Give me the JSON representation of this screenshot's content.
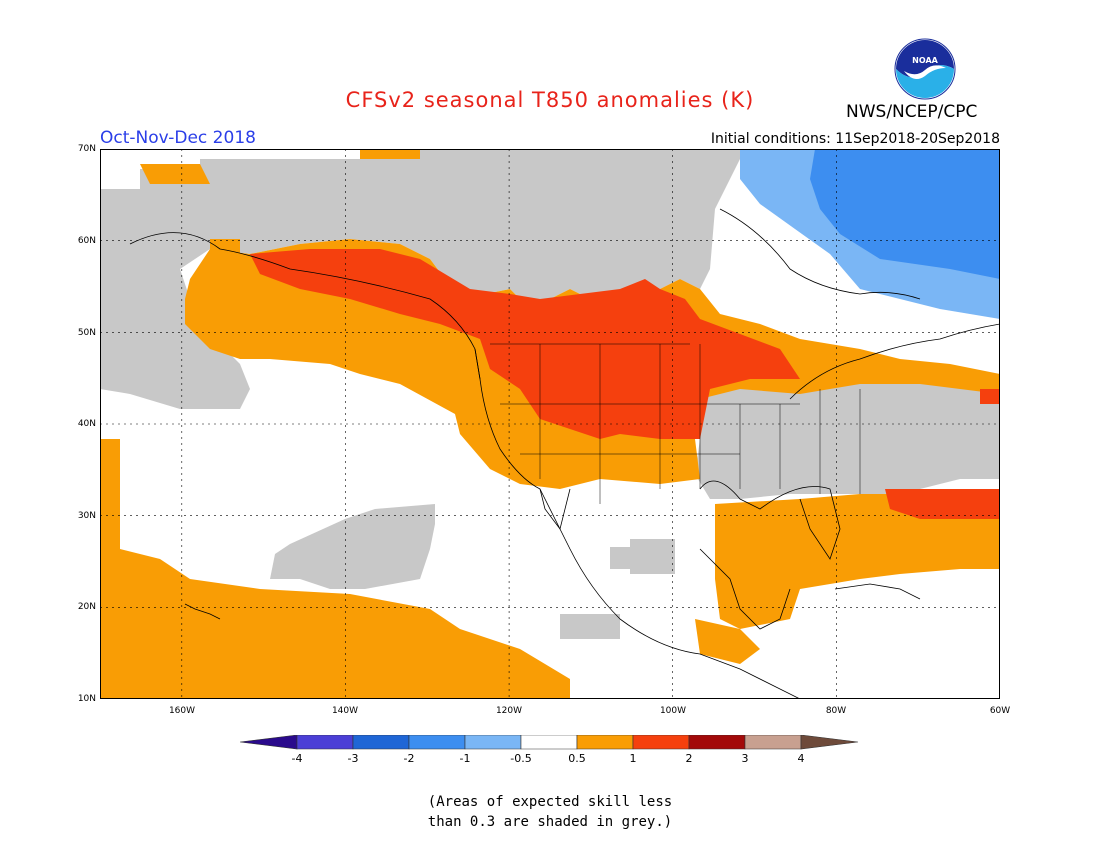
{
  "header": {
    "title": "CFSv2 seasonal T850 anomalies (K)",
    "season": "Oct-Nov-Dec 2018",
    "initial_conditions": "Initial conditions: 11Sep2018-20Sep2018",
    "agency": "NWS/NCEP/CPC",
    "logo_text": "NOAA"
  },
  "map": {
    "lat_labels": [
      "70N",
      "60N",
      "50N",
      "40N",
      "30N",
      "20N",
      "10N"
    ],
    "lon_labels": [
      "160W",
      "140W",
      "120W",
      "100W",
      "80W",
      "60W"
    ],
    "extent": {
      "lon_min": -170,
      "lon_max": -60,
      "lat_min": 10,
      "lat_max": 70
    }
  },
  "legend": {
    "labels": [
      "-4",
      "-3",
      "-2",
      "-1",
      "-0.5",
      "0.5",
      "1",
      "2",
      "3",
      "4"
    ],
    "colors": [
      "#2a0a8c",
      "#4b3fd6",
      "#1f66d6",
      "#3d8ef0",
      "#7ab6f5",
      "#ffffff",
      "#f99d05",
      "#f5400e",
      "#a30a0a",
      "#c8a090",
      "#6e4a3a"
    ],
    "grey": "#c8c8c8"
  },
  "note": {
    "line1": "(Areas of expected skill less",
    "line2": "than 0.3 are shaded in grey.)"
  }
}
